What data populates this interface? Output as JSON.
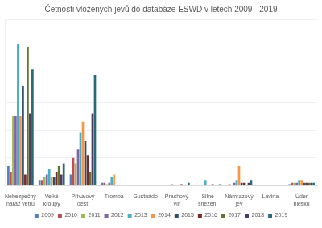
{
  "chart_data": {
    "type": "bar",
    "title": "Četnosti vložených jevů do databáze ESWD v letech 2009 - 2019",
    "categories": [
      "Nebezpečný náraz větru",
      "Velké kroupy",
      "Přívalový déšť",
      "Tromba",
      "Gustnádo",
      "Prachový vír",
      "Silné sněžení",
      "Námrazový jev",
      "Lavina",
      "Úder blesku"
    ],
    "series": [
      {
        "name": "2009",
        "color": "#4f81bd",
        "values": [
          7,
          2,
          4,
          1,
          0,
          0,
          0,
          0,
          0,
          0.5
        ]
      },
      {
        "name": "2010",
        "color": "#c0504d",
        "values": [
          5,
          2,
          10,
          1,
          0,
          0,
          0,
          0.5,
          0,
          1
        ]
      },
      {
        "name": "2011",
        "color": "#9bbb59",
        "values": [
          25,
          3,
          8,
          0.5,
          0,
          0,
          0,
          0,
          0,
          1
        ]
      },
      {
        "name": "2012",
        "color": "#8064a2",
        "values": [
          25,
          4,
          13,
          1,
          0,
          0.5,
          0,
          1,
          0,
          1
        ]
      },
      {
        "name": "2013",
        "color": "#4bacc6",
        "values": [
          51,
          6,
          19,
          3,
          0,
          0,
          2,
          2,
          0,
          2
        ]
      },
      {
        "name": "2014",
        "color": "#f79646",
        "values": [
          25,
          3,
          23,
          4,
          0,
          0,
          0,
          7,
          0,
          2
        ]
      },
      {
        "name": "2015",
        "color": "#2c4d75",
        "values": [
          36,
          3,
          16,
          0,
          0,
          0,
          0,
          1,
          0,
          1
        ]
      },
      {
        "name": "2016",
        "color": "#772c2a",
        "values": [
          4,
          5,
          11,
          0,
          0,
          0.5,
          0.5,
          1,
          0,
          1
        ]
      },
      {
        "name": "2017",
        "color": "#5f7530",
        "values": [
          50,
          7,
          5,
          0,
          0,
          0,
          0,
          0,
          0,
          1
        ]
      },
      {
        "name": "2018",
        "color": "#4d3b62",
        "values": [
          26,
          4,
          26,
          0,
          0,
          0,
          0,
          1,
          0,
          1
        ]
      },
      {
        "name": "2019",
        "color": "#276a7c",
        "values": [
          42,
          8,
          40,
          0,
          0,
          1,
          0.5,
          2,
          0,
          1
        ]
      }
    ],
    "ylim": [
      0,
      60
    ],
    "yticks": [
      0,
      10,
      20,
      30,
      40,
      50,
      60
    ],
    "grid": true,
    "legend": "bottom",
    "tick_labels": "x"
  }
}
